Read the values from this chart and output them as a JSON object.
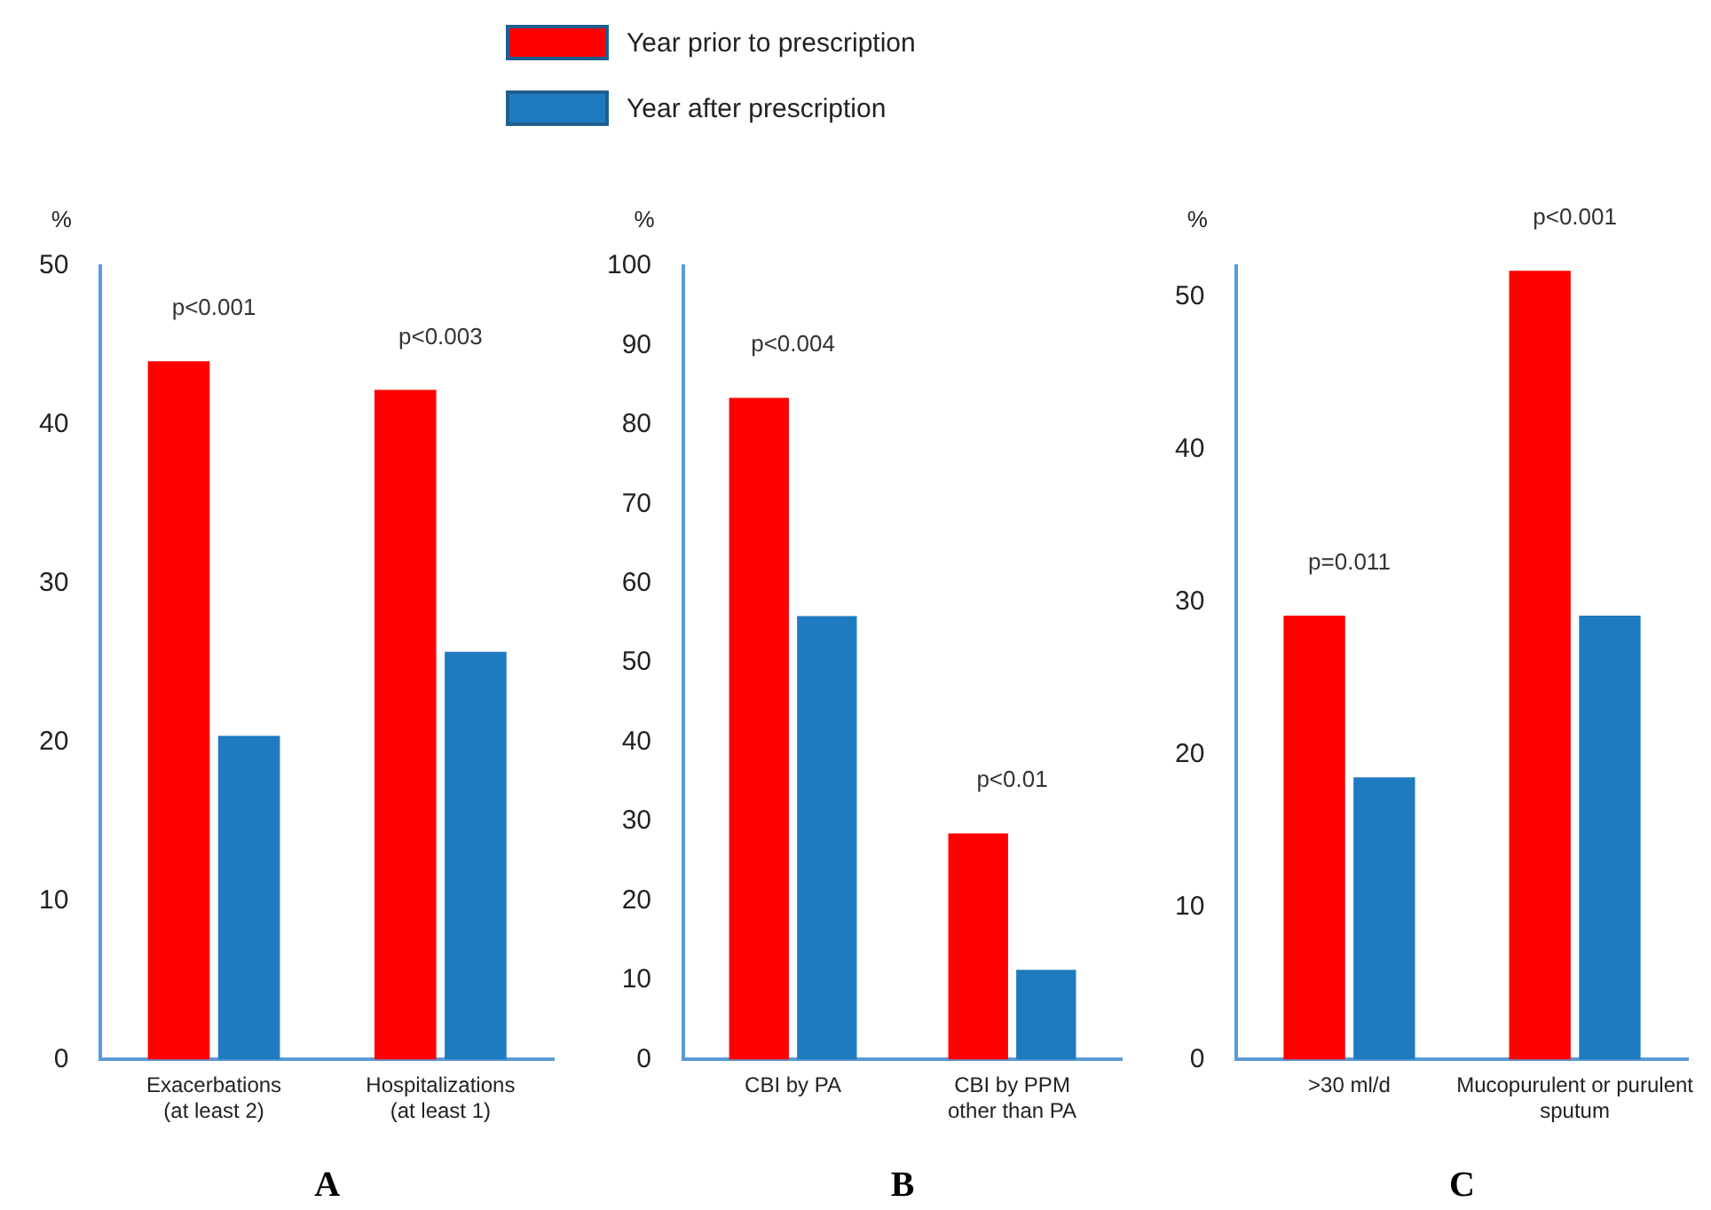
{
  "chart_data": [
    {
      "type": "bar",
      "ylabel": "%",
      "categories": [
        "Exacerbations (at least 2)",
        "Hospitalizations (at least 1)"
      ],
      "series": [
        {
          "name": "Year prior to prescription",
          "color": "#ff0000",
          "values": [
            44,
            42.2
          ]
        },
        {
          "name": "Year after prescription",
          "color": "#1f7bbf",
          "values": [
            20.4,
            25.7
          ]
        }
      ],
      "ylim": [
        0,
        50
      ],
      "yticks": [
        0,
        10,
        20,
        30,
        40,
        50
      ],
      "grid": false,
      "legend": "top",
      "annotations": [
        "p<0.001",
        "p<0.003",
        "A"
      ]
    },
    {
      "type": "bar",
      "ylabel": "%",
      "categories": [
        "CBI by PA",
        "CBI by PPM other than PA"
      ],
      "series": [
        {
          "color": "#ff0000",
          "values": [
            83.4,
            28.5
          ]
        },
        {
          "color": "#1f7bbf",
          "values": [
            55.9,
            11.3
          ]
        }
      ],
      "ylim": [
        0,
        100
      ],
      "yticks": [
        0,
        10,
        20,
        30,
        40,
        50,
        60,
        70,
        80,
        90,
        100
      ],
      "grid": false,
      "annotations": [
        "p<0.004",
        "p<0.01",
        "B"
      ]
    },
    {
      "type": "bar",
      "ylabel": "%",
      "categories": [
        ">30 ml/d",
        "Mucopurulent or purulent sputum"
      ],
      "series": [
        {
          "color": "#ff0000",
          "values": [
            29.1,
            51.7
          ]
        },
        {
          "color": "#1f7bbf",
          "values": [
            18.5,
            29.1
          ]
        }
      ],
      "ylim": [
        0,
        52
      ],
      "yticks": [
        0,
        10,
        20,
        30,
        40,
        50
      ],
      "grid": false,
      "annotations": [
        "p=0.011",
        "p<0.001",
        "C"
      ]
    }
  ]
}
